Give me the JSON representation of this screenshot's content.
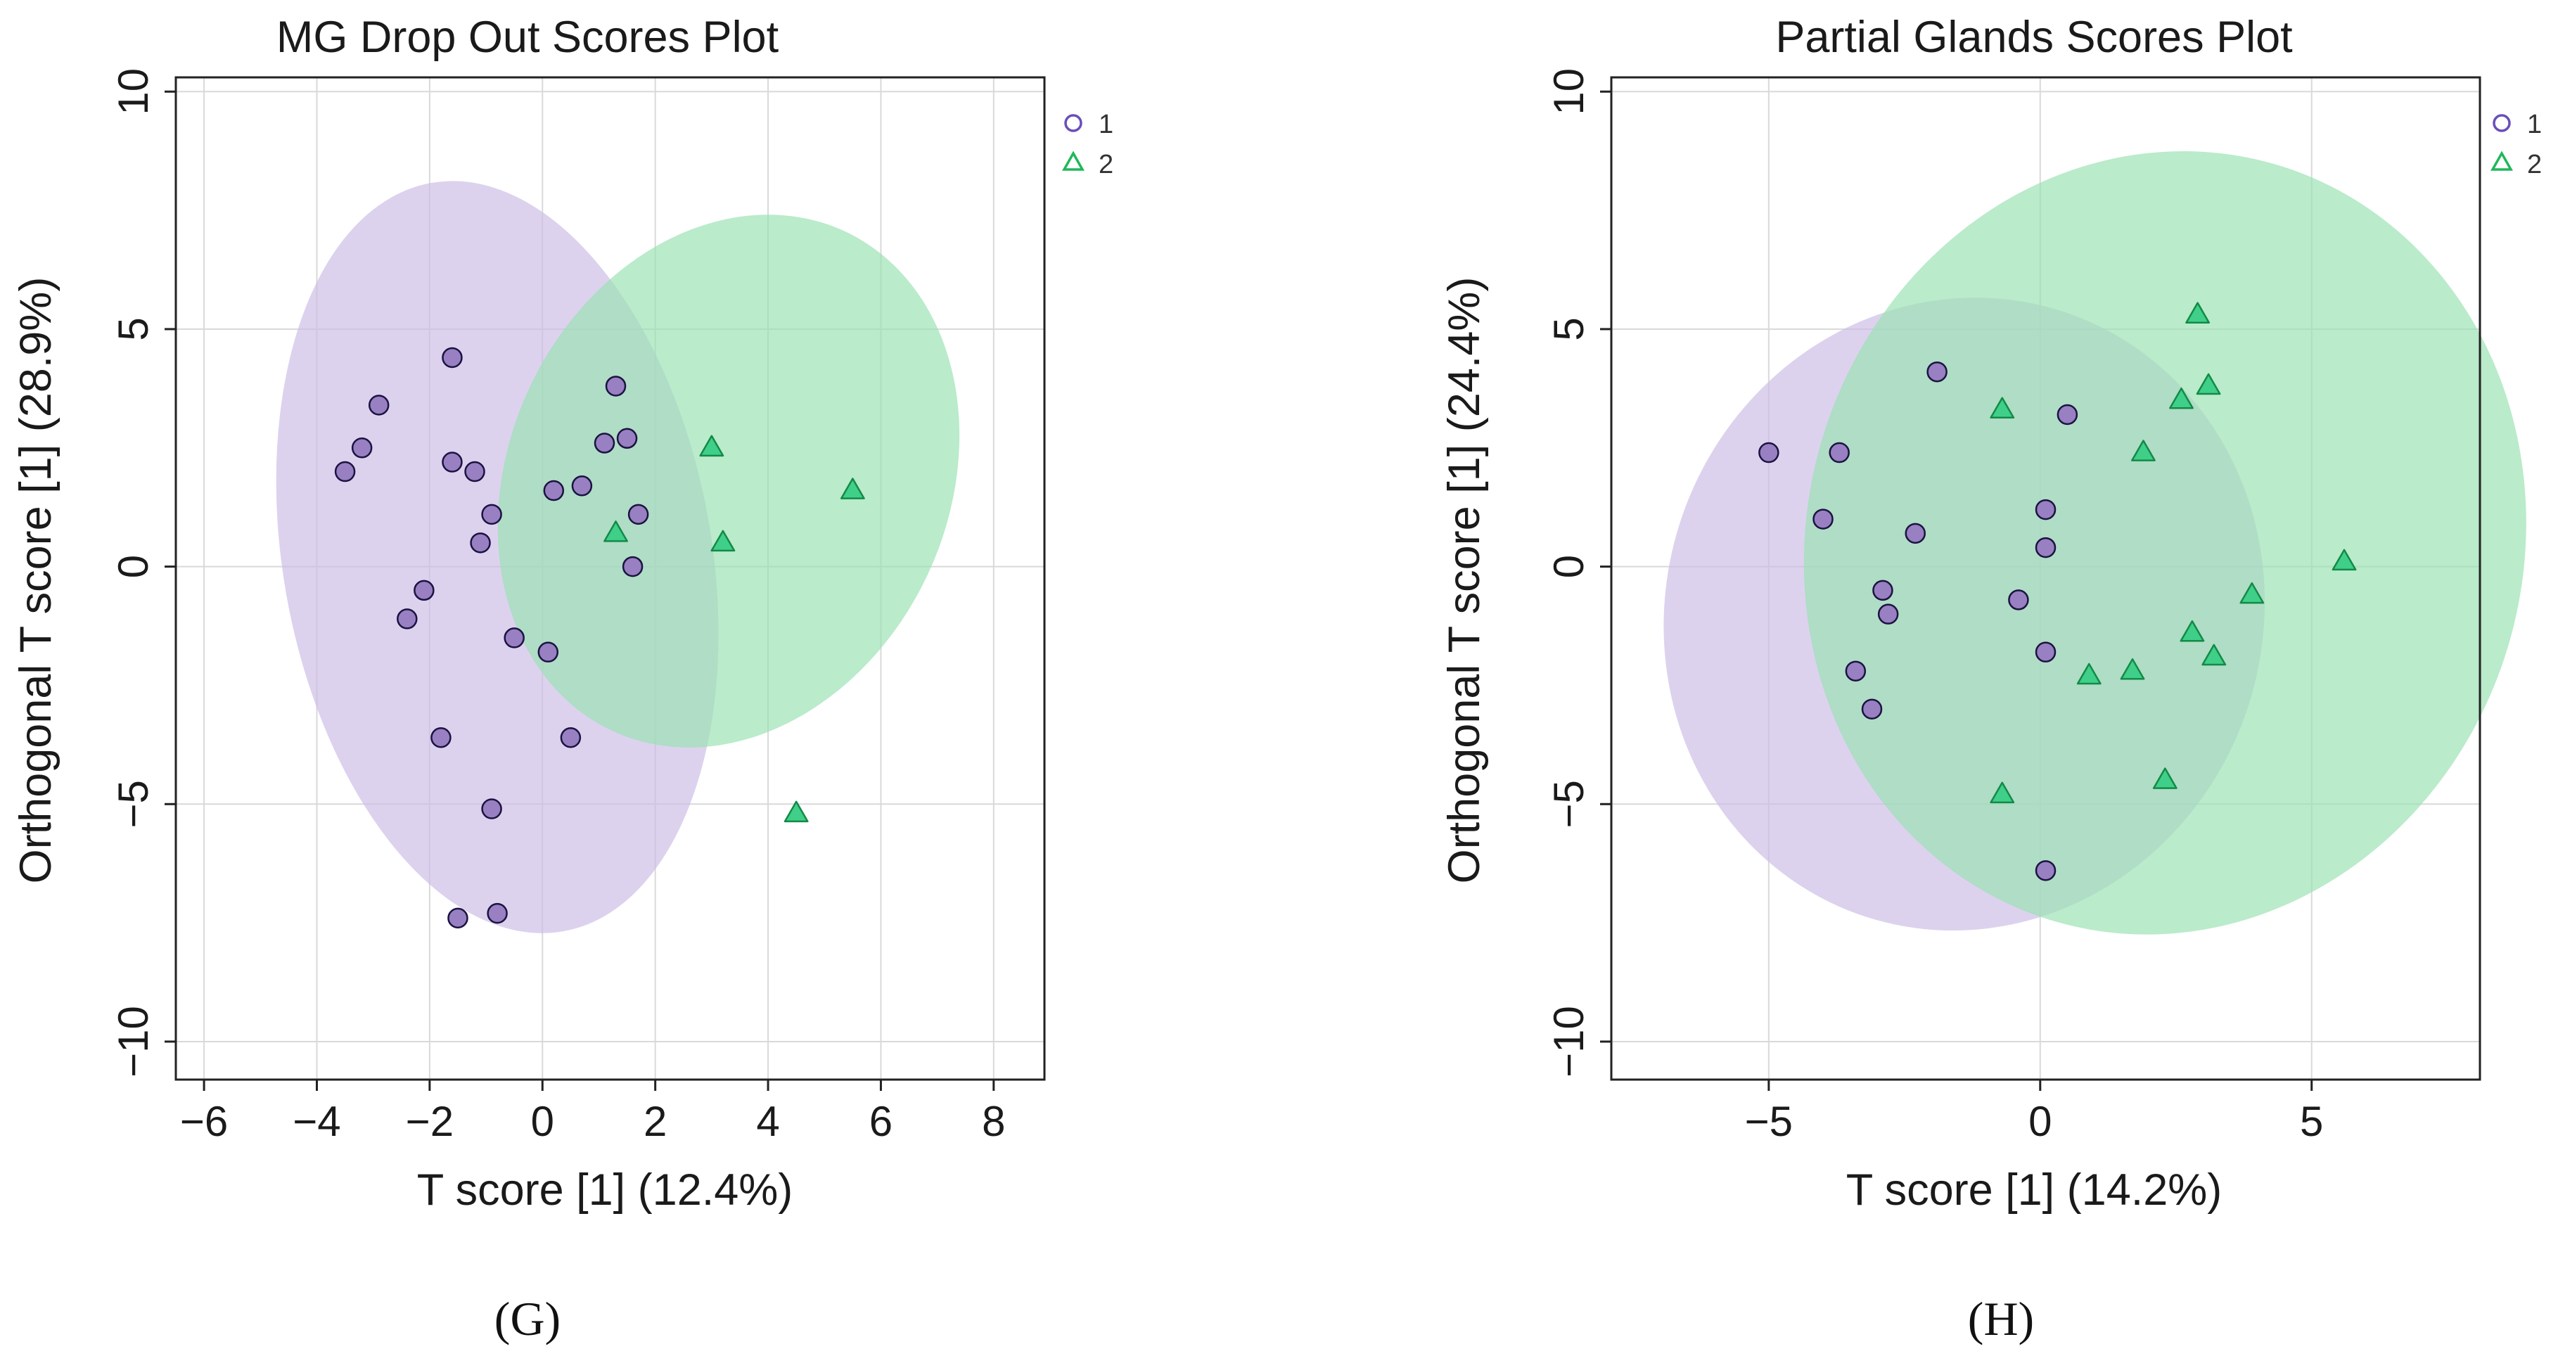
{
  "colors": {
    "group1_fill": "#9880c2",
    "group1_stroke": "#1b1340",
    "group1_ellipse": "#ccbde6",
    "group2_fill": "#3fcf88",
    "group2_stroke": "#138a47",
    "group2_ellipse": "#99e2b3",
    "legend1": "#6a4fb8",
    "legend2": "#1fb85a",
    "grid": "#d9d9d9",
    "frame": "#222222"
  },
  "chart_data": [
    {
      "type": "scatter",
      "title": "MG Drop Out Scores Plot",
      "xlabel": "T score [1] (12.4%)",
      "ylabel": "Orthogonal T score [1] (28.9%)",
      "xlim": [
        -6.5,
        8.9
      ],
      "ylim": [
        -10.8,
        10.3
      ],
      "xticks": [
        -6,
        -4,
        -2,
        0,
        2,
        4,
        6,
        8
      ],
      "xtick_labels": [
        "−6",
        "−4",
        "−2",
        "0",
        "2",
        "4",
        "6",
        "8"
      ],
      "yticks": [
        -10,
        -5,
        0,
        5,
        10
      ],
      "ytick_labels": [
        "−10",
        "−5",
        "0",
        "5",
        "10"
      ],
      "grid": true,
      "legend_position": "top-right outside",
      "panel_letter": "(G)",
      "series": [
        {
          "name": "1",
          "marker": "circle",
          "x": [
            -3.5,
            -3.2,
            -2.9,
            -1.6,
            -1.6,
            -1.2,
            -1.1,
            -0.9,
            -2.1,
            -2.4,
            -0.5,
            0.1,
            0.2,
            0.7,
            1.1,
            1.3,
            1.5,
            1.7,
            1.6,
            0.5,
            -1.8,
            -0.9,
            -1.5,
            -0.8
          ],
          "y": [
            2.0,
            2.5,
            3.4,
            4.4,
            2.2,
            2.0,
            0.5,
            1.1,
            -0.5,
            -1.1,
            -1.5,
            -1.8,
            1.6,
            1.7,
            2.6,
            3.8,
            2.7,
            1.1,
            0.0,
            -3.6,
            -3.6,
            -5.1,
            -7.4,
            -7.3
          ],
          "ellipse": {
            "cx": -0.8,
            "cy": 0.2,
            "rx": 3.8,
            "ry": 8.0,
            "angle_deg": -10
          }
        },
        {
          "name": "2",
          "marker": "triangle",
          "x": [
            1.3,
            3.0,
            3.2,
            5.5,
            4.5
          ],
          "y": [
            0.7,
            2.5,
            0.5,
            1.6,
            -5.2
          ],
          "ellipse": {
            "cx": 3.3,
            "cy": 1.8,
            "rx": 3.9,
            "ry": 5.8,
            "angle_deg": 25
          }
        }
      ]
    },
    {
      "type": "scatter",
      "title": "Partial Glands Scores Plot",
      "xlabel": "T score [1] (14.2%)",
      "ylabel": "Orthogonal T score [1] (24.4%)",
      "xlim": [
        -7.9,
        8.1
      ],
      "ylim": [
        -10.8,
        10.3
      ],
      "xticks": [
        -5,
        0,
        5
      ],
      "xtick_labels": [
        "−5",
        "0",
        "5"
      ],
      "yticks": [
        -10,
        -5,
        0,
        5,
        10
      ],
      "ytick_labels": [
        "−10",
        "−5",
        "0",
        "5",
        "10"
      ],
      "grid": true,
      "legend_position": "top-right outside",
      "panel_letter": "(H)",
      "series": [
        {
          "name": "1",
          "marker": "circle",
          "x": [
            -5.0,
            -3.7,
            -4.0,
            -1.9,
            -2.3,
            0.5,
            0.1,
            0.1,
            -0.4,
            -2.9,
            -2.8,
            -3.4,
            -3.1,
            0.1,
            0.1
          ],
          "y": [
            2.4,
            2.4,
            1.0,
            4.1,
            0.7,
            3.2,
            1.2,
            0.4,
            -0.7,
            -0.5,
            -1.0,
            -2.2,
            -3.0,
            -1.8,
            -6.4
          ],
          "ellipse": {
            "cx": -1.4,
            "cy": -1.0,
            "rx": 5.5,
            "ry": 6.7,
            "angle_deg": 18
          }
        },
        {
          "name": "2",
          "marker": "triangle",
          "x": [
            -0.7,
            2.9,
            2.6,
            3.1,
            1.9,
            5.6,
            3.9,
            2.8,
            3.2,
            0.9,
            1.7,
            2.3,
            -0.7
          ],
          "y": [
            3.3,
            5.3,
            3.5,
            3.8,
            2.4,
            0.1,
            -0.6,
            -1.4,
            -1.9,
            -2.3,
            -2.2,
            -4.5,
            -4.8
          ],
          "ellipse": {
            "cx": 2.3,
            "cy": 0.5,
            "rx": 6.6,
            "ry": 8.3,
            "angle_deg": 16
          }
        }
      ]
    }
  ]
}
